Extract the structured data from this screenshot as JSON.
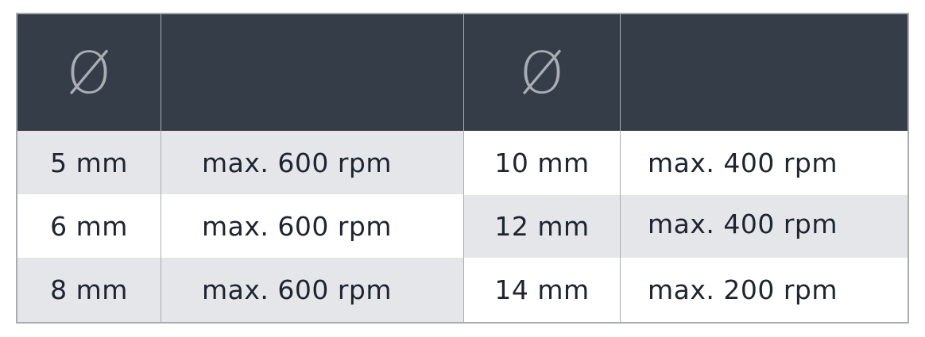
{
  "header": {
    "diameter_symbol": "Ø",
    "diameter_symbol_2": "Ø"
  },
  "left_rows": [
    {
      "diameter": "5 mm",
      "speed": "max. 600 rpm"
    },
    {
      "diameter": "6 mm",
      "speed": "max. 600 rpm"
    },
    {
      "diameter": "8 mm",
      "speed": "max. 600 rpm"
    }
  ],
  "right_rows": [
    {
      "diameter": "10 mm",
      "speed": "max. 400 rpm"
    },
    {
      "diameter": "12 mm",
      "speed": "max. 400 rpm"
    },
    {
      "diameter": "14 mm",
      "speed": "max. 200 rpm"
    }
  ],
  "colors": {
    "header_bg": "#343d48",
    "stripe": "#e5e6e9",
    "border": "#a8acb2",
    "text": "#1e2430"
  }
}
